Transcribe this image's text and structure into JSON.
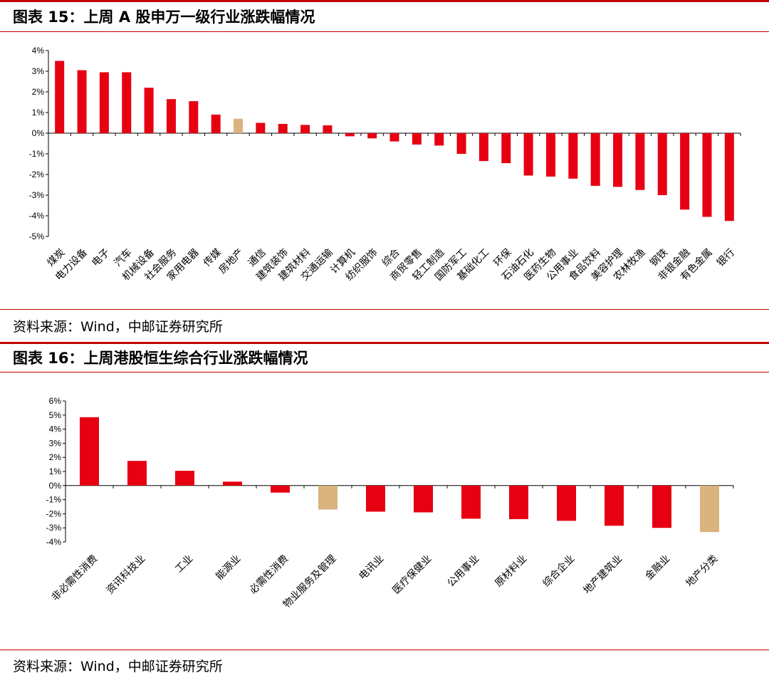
{
  "figure1": {
    "title": "图表 15：上周 A 股申万一级行业涨跌幅情况",
    "source": "资料来源：Wind，中邮证券研究所"
  },
  "figure2": {
    "title": "图表 16：上周港股恒生综合行业涨跌幅情况",
    "source": "资料来源：Wind，中邮证券研究所"
  },
  "colors": {
    "main": "#e60012",
    "highlight": "#d9b47f",
    "rule": "#c00000"
  },
  "chart_data": [
    {
      "type": "bar",
      "title": "上周 A 股申万一级行业涨跌幅情况",
      "xlabel": "",
      "ylabel": "",
      "ylim": [
        -5,
        4
      ],
      "yticks": [
        "4%",
        "3%",
        "2%",
        "1%",
        "0%",
        "-1%",
        "-2%",
        "-3%",
        "-4%",
        "-5%"
      ],
      "categories": [
        "煤炭",
        "电力设备",
        "电子",
        "汽车",
        "机械设备",
        "社会服务",
        "家用电器",
        "传媒",
        "房地产",
        "通信",
        "建筑装饰",
        "建筑材料",
        "交通运输",
        "计算机",
        "纺织服饰",
        "综合",
        "商贸零售",
        "轻工制造",
        "国防军工",
        "基础化工",
        "环保",
        "石油石化",
        "医药生物",
        "公用事业",
        "食品饮料",
        "美容护理",
        "农林牧渔",
        "钢铁",
        "非银金融",
        "有色金属",
        "银行"
      ],
      "values": [
        3.5,
        3.05,
        2.95,
        2.95,
        2.2,
        1.65,
        1.55,
        0.9,
        0.7,
        0.5,
        0.45,
        0.4,
        0.38,
        -0.15,
        -0.25,
        -0.4,
        -0.55,
        -0.6,
        -1.0,
        -1.35,
        -1.45,
        -2.05,
        -2.1,
        -2.2,
        -2.55,
        -2.6,
        -2.75,
        -3.0,
        -3.7,
        -4.05,
        -4.25
      ],
      "highlight_index": 8
    },
    {
      "type": "bar",
      "title": "上周港股恒生综合行业涨跌幅情况",
      "xlabel": "",
      "ylabel": "",
      "ylim": [
        -4,
        6
      ],
      "yticks": [
        "6%",
        "5%",
        "4%",
        "3%",
        "2%",
        "1%",
        "0%",
        "-1%",
        "-2%",
        "-3%",
        "-4%"
      ],
      "categories": [
        "非必需性消费",
        "资讯科技业",
        "工业",
        "能源业",
        "必需性消费",
        "物业服务及管理",
        "电讯业",
        "医疗保健业",
        "公用事业",
        "原材料业",
        "综合企业",
        "地产建筑业",
        "金融业",
        "地产分类"
      ],
      "values": [
        4.85,
        1.75,
        1.05,
        0.28,
        -0.5,
        -1.7,
        -1.85,
        -1.9,
        -2.35,
        -2.38,
        -2.5,
        -2.85,
        -3.0,
        -3.3
      ],
      "highlight_indices": [
        5,
        13
      ]
    }
  ]
}
